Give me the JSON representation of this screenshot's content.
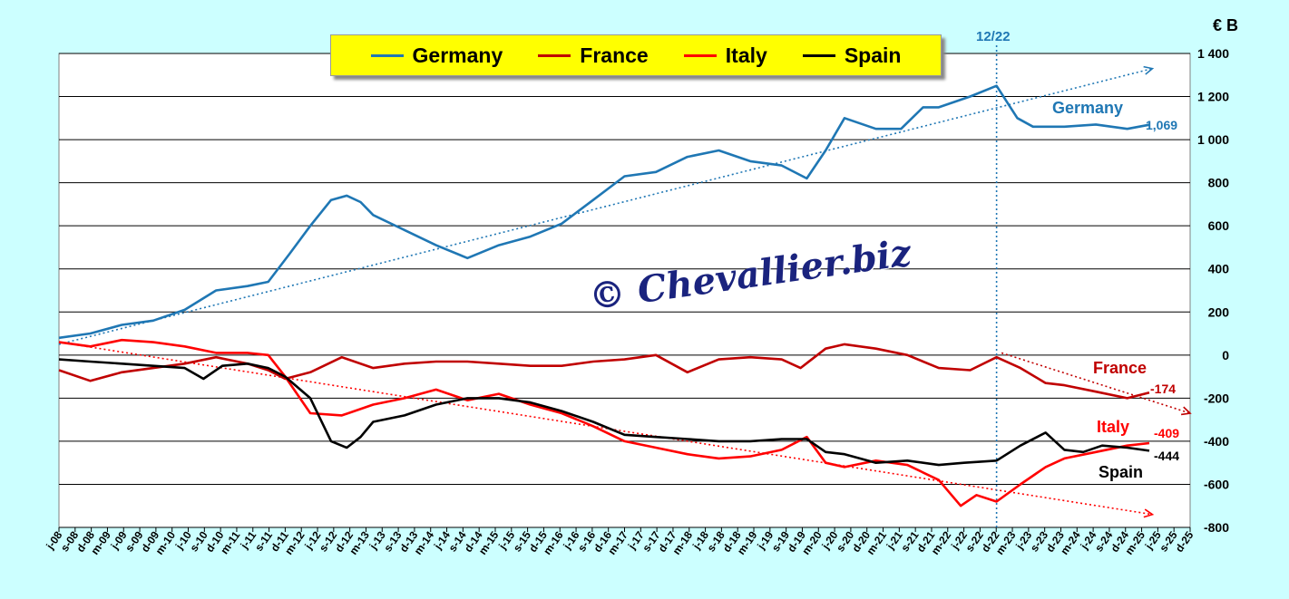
{
  "legend": [
    {
      "name": "Germany",
      "color": "#1f77b4"
    },
    {
      "name": "France",
      "color": "#c00000"
    },
    {
      "name": "Italy",
      "color": "#ff0000"
    },
    {
      "name": "Spain",
      "color": "#000000"
    }
  ],
  "watermark": "© Chevallier.biz",
  "unit": "€ B",
  "marker": {
    "label": "12/22"
  },
  "annotations": {
    "germany_name": "Germany",
    "germany_value": "1,069",
    "france_name": "France",
    "france_value": "-174",
    "italy_name": "Italy",
    "italy_value": "-409",
    "spain_name": "Spain",
    "spain_value": "-444"
  },
  "chart_data": {
    "type": "line",
    "ylim": [
      -800,
      1400
    ],
    "y_ticks": [
      1400,
      1200,
      1000,
      800,
      600,
      400,
      200,
      0,
      -200,
      -400,
      -600,
      -800
    ],
    "y_tick_labels": [
      "1 400",
      "1 200",
      "1 000",
      "800",
      "600",
      "400",
      "200",
      "0",
      "-200",
      "-400",
      "-600",
      "-800"
    ],
    "x_range": [
      2008.0,
      2026.0
    ],
    "x_tick_labels": [
      "j-08",
      "s-08",
      "d-08",
      "m-09",
      "j-09",
      "s-09",
      "d-09",
      "m-10",
      "j-10",
      "s-10",
      "d-10",
      "m-11",
      "j-11",
      "s-11",
      "d-11",
      "m-12",
      "j-12",
      "s-12",
      "d-12",
      "m-13",
      "j-13",
      "s-13",
      "d-13",
      "m-14",
      "j-14",
      "s-14",
      "d-14",
      "m-15",
      "j-15",
      "s-15",
      "d-15",
      "m-16",
      "j-16",
      "s-16",
      "d-16",
      "m-17",
      "j-17",
      "s-17",
      "d-17",
      "m-18",
      "j-18",
      "s-18",
      "d-18",
      "m-19",
      "j-19",
      "s-19",
      "d-19",
      "m-20",
      "j-20",
      "s-20",
      "d-20",
      "m-21",
      "j-21",
      "s-21",
      "d-21",
      "m-22",
      "j-22",
      "s-22",
      "d-22",
      "m-23",
      "j-23",
      "s-23",
      "d-23",
      "m-24",
      "j-24",
      "s-24",
      "d-24",
      "m-25",
      "j-25",
      "s-25",
      "d-25"
    ],
    "vertical_marker_x": 2022.92,
    "series": [
      {
        "name": "Germany",
        "color": "#1f77b4",
        "x": [
          2008.0,
          2008.5,
          2009.0,
          2009.5,
          2010.0,
          2010.5,
          2011.0,
          2011.33,
          2011.67,
          2012.0,
          2012.33,
          2012.58,
          2012.8,
          2013.0,
          2013.5,
          2014.0,
          2014.5,
          2015.0,
          2015.5,
          2016.0,
          2016.5,
          2017.0,
          2017.5,
          2018.0,
          2018.5,
          2019.0,
          2019.5,
          2019.9,
          2020.2,
          2020.5,
          2021.0,
          2021.4,
          2021.75,
          2022.0,
          2022.5,
          2022.92,
          2023.25,
          2023.5,
          2024.0,
          2024.5,
          2025.0,
          2025.35
        ],
        "y": [
          80,
          100,
          140,
          160,
          210,
          300,
          320,
          340,
          470,
          600,
          720,
          740,
          710,
          650,
          580,
          510,
          450,
          510,
          550,
          610,
          720,
          830,
          850,
          920,
          950,
          900,
          880,
          820,
          950,
          1100,
          1050,
          1050,
          1150,
          1150,
          1200,
          1250,
          1100,
          1060,
          1060,
          1070,
          1050,
          1069
        ]
      },
      {
        "name": "France",
        "color": "#c00000",
        "x": [
          2008.0,
          2008.5,
          2009.0,
          2009.5,
          2010.0,
          2010.5,
          2011.0,
          2011.33,
          2011.6,
          2012.0,
          2012.5,
          2013.0,
          2013.5,
          2014.0,
          2014.5,
          2015.0,
          2015.5,
          2016.0,
          2016.5,
          2017.0,
          2017.5,
          2018.0,
          2018.5,
          2019.0,
          2019.5,
          2019.8,
          2020.2,
          2020.5,
          2021.0,
          2021.5,
          2022.0,
          2022.5,
          2022.92,
          2023.3,
          2023.7,
          2024.0,
          2024.5,
          2025.0,
          2025.35
        ],
        "y": [
          -70,
          -120,
          -80,
          -60,
          -40,
          -10,
          -40,
          -70,
          -110,
          -80,
          -10,
          -60,
          -40,
          -30,
          -30,
          -40,
          -50,
          -50,
          -30,
          -20,
          0,
          -80,
          -20,
          -10,
          -20,
          -60,
          30,
          50,
          30,
          0,
          -60,
          -70,
          -10,
          -60,
          -130,
          -140,
          -170,
          -200,
          -174
        ]
      },
      {
        "name": "Italy",
        "color": "#ff0000",
        "x": [
          2008.0,
          2008.5,
          2009.0,
          2009.5,
          2010.0,
          2010.5,
          2011.0,
          2011.33,
          2011.6,
          2012.0,
          2012.5,
          2013.0,
          2013.5,
          2014.0,
          2014.5,
          2015.0,
          2015.5,
          2016.0,
          2016.5,
          2017.0,
          2017.5,
          2018.0,
          2018.5,
          2019.0,
          2019.5,
          2019.9,
          2020.2,
          2020.5,
          2021.0,
          2021.5,
          2022.0,
          2022.35,
          2022.6,
          2022.92,
          2023.3,
          2023.7,
          2024.0,
          2024.5,
          2025.0,
          2025.35
        ],
        "y": [
          60,
          40,
          70,
          60,
          40,
          10,
          10,
          0,
          -100,
          -270,
          -280,
          -230,
          -200,
          -160,
          -210,
          -180,
          -230,
          -270,
          -330,
          -400,
          -430,
          -460,
          -480,
          -470,
          -440,
          -380,
          -500,
          -520,
          -490,
          -510,
          -580,
          -700,
          -650,
          -680,
          -600,
          -520,
          -480,
          -450,
          -420,
          -409
        ]
      },
      {
        "name": "Spain",
        "color": "#000000",
        "x": [
          2008.0,
          2008.5,
          2009.0,
          2009.5,
          2010.0,
          2010.3,
          2010.6,
          2011.0,
          2011.33,
          2011.6,
          2012.0,
          2012.33,
          2012.58,
          2012.8,
          2013.0,
          2013.5,
          2014.0,
          2014.5,
          2015.0,
          2015.5,
          2016.0,
          2016.5,
          2017.0,
          2017.5,
          2018.0,
          2018.5,
          2019.0,
          2019.5,
          2019.9,
          2020.2,
          2020.5,
          2021.0,
          2021.5,
          2022.0,
          2022.4,
          2022.92,
          2023.3,
          2023.7,
          2024.0,
          2024.3,
          2024.6,
          2025.0,
          2025.35
        ],
        "y": [
          -20,
          -30,
          -40,
          -50,
          -60,
          -110,
          -50,
          -40,
          -60,
          -100,
          -200,
          -400,
          -430,
          -380,
          -310,
          -280,
          -230,
          -200,
          -200,
          -220,
          -260,
          -310,
          -370,
          -380,
          -390,
          -400,
          -400,
          -390,
          -390,
          -450,
          -460,
          -500,
          -490,
          -510,
          -500,
          -490,
          -420,
          -360,
          -440,
          -450,
          -420,
          -430,
          -444
        ]
      }
    ],
    "trendlines": [
      {
        "series": "Germany",
        "x": [
          2008.0,
          2025.4
        ],
        "y": [
          50,
          1330
        ]
      },
      {
        "series": "France",
        "x": [
          2023.0,
          2026.0
        ],
        "y": [
          10,
          -270
        ]
      },
      {
        "series": "Italy",
        "x": [
          2008.0,
          2025.4
        ],
        "y": [
          60,
          -740
        ]
      }
    ]
  }
}
